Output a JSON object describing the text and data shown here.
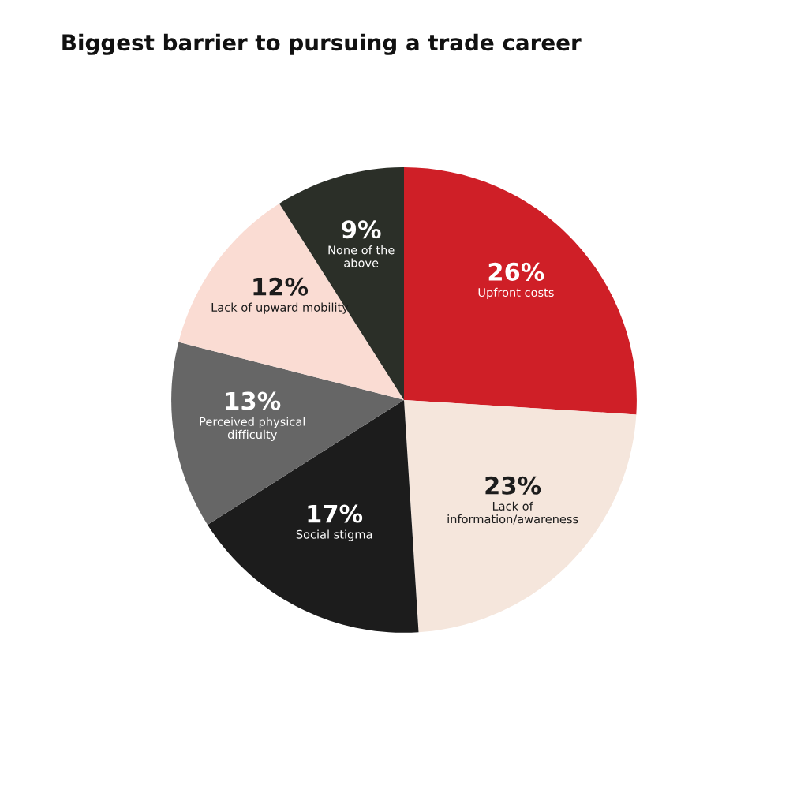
{
  "chart_data": {
    "type": "pie",
    "title": "Biggest barrier to pursuing a trade career",
    "categories": [
      "Upfront costs",
      "Lack of\ninformation/awareness",
      "Social stigma",
      "Perceived physical\ndifficulty",
      "Lack of upward mobility",
      "None of the\nabove"
    ],
    "values": [
      26,
      23,
      17,
      13,
      12,
      9
    ],
    "value_labels": [
      "26%",
      "23%",
      "17%",
      "13%",
      "12%",
      "9%"
    ],
    "colors": [
      "#cf1f27",
      "#f5e6dc",
      "#1c1c1c",
      "#666666",
      "#fadcd3",
      "#2b2f28"
    ]
  }
}
